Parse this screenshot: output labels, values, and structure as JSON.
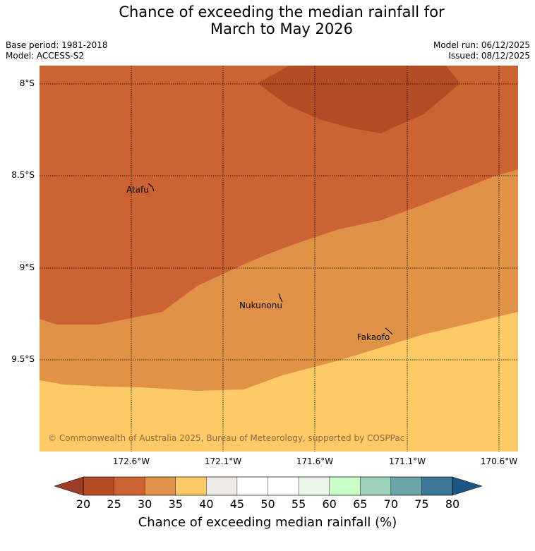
{
  "title_line1": "Chance of exceeding the median rainfall for",
  "title_line2": "March to May 2026",
  "base_period": "Base period: 1981-2018",
  "model": "Model: ACCESS-S2",
  "model_run": "Model run: 06/12/2025",
  "issued": "Issued: 08/12/2025",
  "y_ticks": [
    "8°S",
    "8.5°S",
    "9°S",
    "9.5°S"
  ],
  "x_ticks": [
    "172.6°W",
    "172.1°W",
    "171.6°W",
    "171.1°W",
    "170.6°W"
  ],
  "places": [
    "Atafu",
    "Nukunonu",
    "Fakaofo"
  ],
  "copyright": "© Commonwealth of Australia 2025, Bureau of Meteorology, supported by COSPPac",
  "colorbar": {
    "ticks": [
      "20",
      "25",
      "30",
      "35",
      "40",
      "45",
      "50",
      "55",
      "60",
      "65",
      "70",
      "75",
      "80"
    ],
    "label": "Chance of exceeding median rainfall (%)",
    "colors": [
      "#b24c25",
      "#cb6332",
      "#e09347",
      "#feca67",
      "#ece9e6",
      "#ffffff",
      "#ffffff",
      "#eaf6e7",
      "#c6fec6",
      "#9ed1b9",
      "#6ca4a7",
      "#3d7797"
    ],
    "under_color": "#9c3e26",
    "over_color": "#1d5486"
  },
  "map_colors": {
    "band_20_25": "#b24c25",
    "band_25_30": "#cb6332",
    "band_30_35": "#e09347",
    "band_35_40": "#feca67"
  }
}
